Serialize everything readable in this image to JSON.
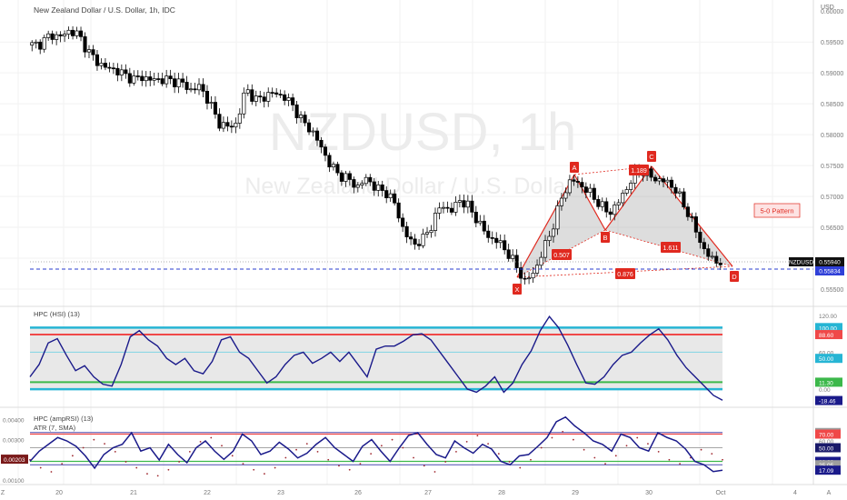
{
  "header": {
    "title": "New Zealand Dollar / U.S. Dollar, 1h, IDC"
  },
  "watermark": {
    "symbol": "NZDUSD, 1h",
    "name": "New Zealand Dollar / U.S. Dollar"
  },
  "pattern": {
    "label": "5-0 Pattern",
    "points": [
      "X",
      "A",
      "B",
      "C",
      "D"
    ],
    "ratios": [
      "0.507",
      "1.189",
      "1.611",
      "0.876"
    ]
  },
  "price_axis": {
    "currency": "USD",
    "ticks": [
      "0.60000",
      "0.59500",
      "0.59000",
      "0.58500",
      "0.58000",
      "0.57500",
      "0.57000",
      "0.56500",
      "0.55500"
    ],
    "symbol_tag": "NZDUSD",
    "last_price": "0.55940",
    "line_price": "0.55834"
  },
  "time_axis": {
    "ticks": [
      "Z",
      "20",
      "21",
      "22",
      "23",
      "26",
      "27",
      "28",
      "29",
      "30",
      "Oct",
      "4",
      "A"
    ]
  },
  "hsi": {
    "title": "HPC (HSI) (13)",
    "levels": [
      "120.00",
      "100.00",
      "88.60",
      "60.00",
      "50.00",
      "11.30",
      "0.00",
      "-18.46"
    ]
  },
  "amprsi": {
    "title": "HPC (ampRSI) (13)",
    "atr_title": "ATR (7, SMA)",
    "left_ticks": [
      "0.00400",
      "0.00300",
      "0.00200",
      "0.00100"
    ],
    "left_tag": "0.00203",
    "levels": [
      "72.33",
      "70.00",
      "60.00",
      "50.00",
      "30.00",
      "25.05",
      "17.09"
    ]
  },
  "colors": {
    "up": "#ffffff",
    "down": "#000000",
    "pattern_red": "#e0291f",
    "hsi_line": "#1a1a8a",
    "cyan": "#26b5d4",
    "red": "#f04848",
    "green": "#3cb84a",
    "blue_dash": "#2a3ecf"
  },
  "chart_data": [
    {
      "type": "candlestick",
      "title": "New Zealand Dollar / U.S. Dollar, 1h, IDC",
      "ylabel": "USD",
      "ylim": [
        0.5525,
        0.6018
      ],
      "x_ticks": [
        "20",
        "21",
        "22",
        "23",
        "26",
        "27",
        "28",
        "29",
        "30",
        "Oct",
        "4"
      ],
      "close_path": [
        0.5945,
        0.5948,
        0.5962,
        0.5958,
        0.5968,
        0.5962,
        0.5935,
        0.5918,
        0.5908,
        0.5905,
        0.5896,
        0.589,
        0.5893,
        0.5888,
        0.589,
        0.5887,
        0.5885,
        0.5872,
        0.5878,
        0.5855,
        0.582,
        0.5812,
        0.5818,
        0.5876,
        0.5855,
        0.5862,
        0.5868,
        0.5862,
        0.5848,
        0.5822,
        0.5808,
        0.5782,
        0.5752,
        0.5735,
        0.5728,
        0.5715,
        0.573,
        0.5712,
        0.5708,
        0.5688,
        0.5642,
        0.5622,
        0.563,
        0.5655,
        0.5688,
        0.5675,
        0.5695,
        0.5682,
        0.5658,
        0.5635,
        0.5628,
        0.5612,
        0.5588,
        0.5562,
        0.5578,
        0.5615,
        0.5652,
        0.5702,
        0.5728,
        0.5718,
        0.5705,
        0.5688,
        0.5672,
        0.569,
        0.5715,
        0.5745,
        0.5738,
        0.5728,
        0.5725,
        0.5715,
        0.5688,
        0.5658,
        0.562,
        0.5598,
        0.5594
      ],
      "series": [
        {
          "name": "5-0 Pattern",
          "points": [
            [
              "X",
              0.5554
            ],
            [
              "A",
              0.5735
            ],
            [
              "B",
              0.5665
            ],
            [
              "C",
              0.5755
            ],
            [
              "D",
              0.558
            ]
          ]
        }
      ],
      "annotations": [
        "0.507",
        "1.189",
        "1.611",
        "0.876",
        "5-0 Pattern"
      ],
      "last_price": 0.5594,
      "horizontal_line": 0.55834
    },
    {
      "type": "line",
      "title": "HPC (HSI) (13)",
      "ylim": [
        -25,
        130
      ],
      "levels": [
        100,
        88.6,
        60,
        11.3,
        0
      ],
      "values": [
        20,
        40,
        75,
        82,
        55,
        30,
        38,
        20,
        8,
        5,
        40,
        85,
        95,
        80,
        70,
        50,
        40,
        50,
        30,
        25,
        45,
        80,
        85,
        60,
        50,
        30,
        10,
        20,
        40,
        55,
        60,
        42,
        50,
        60,
        45,
        60,
        40,
        20,
        65,
        70,
        70,
        78,
        88,
        90,
        80,
        60,
        40,
        20,
        0,
        -5,
        5,
        20,
        -5,
        10,
        40,
        62,
        95,
        118,
        100,
        72,
        40,
        10,
        8,
        20,
        40,
        55,
        60,
        75,
        88,
        98,
        80,
        55,
        35,
        20,
        5,
        -10,
        -18
      ]
    },
    {
      "type": "line",
      "title": "HPC (ampRSI) (13)",
      "ylim": [
        0,
        100
      ],
      "levels": [
        70,
        50,
        30
      ],
      "values": [
        30,
        45,
        55,
        65,
        60,
        52,
        38,
        20,
        40,
        50,
        55,
        72,
        45,
        50,
        32,
        55,
        40,
        28,
        50,
        60,
        45,
        33,
        45,
        70,
        60,
        40,
        45,
        58,
        48,
        35,
        42,
        55,
        65,
        50,
        40,
        30,
        52,
        62,
        45,
        30,
        50,
        68,
        72,
        55,
        40,
        35,
        60,
        50,
        42,
        55,
        48,
        30,
        25,
        38,
        40,
        52,
        65,
        88,
        95,
        82,
        72,
        60,
        55,
        45,
        70,
        65,
        50,
        45,
        72,
        65,
        60,
        48,
        30,
        25,
        15,
        17
      ]
    },
    {
      "type": "scatter",
      "title": "ATR (7, SMA)",
      "ylim": [
        0.0009,
        0.0043
      ],
      "values": [
        0.002,
        0.0016,
        0.0014,
        0.0018,
        0.0022,
        0.0026,
        0.003,
        0.0028,
        0.0024,
        0.0019,
        0.0016,
        0.0013,
        0.0012,
        0.0015,
        0.0019,
        0.0024,
        0.0029,
        0.0031,
        0.0027,
        0.0022,
        0.0018,
        0.0015,
        0.0013,
        0.0016,
        0.0021,
        0.0025,
        0.0028,
        0.0024,
        0.002,
        0.0017,
        0.0015,
        0.0018,
        0.0023,
        0.0027,
        0.003,
        0.0026,
        0.0021,
        0.0017,
        0.0014,
        0.0019,
        0.0024,
        0.0029,
        0.0032,
        0.0028,
        0.0023,
        0.0019,
        0.0016,
        0.002,
        0.0026,
        0.0031,
        0.0034,
        0.003,
        0.0025,
        0.0021,
        0.0018,
        0.0022,
        0.0027,
        0.0031,
        0.0028,
        0.0024,
        0.002,
        0.0018,
        0.0021,
        0.0025,
        0.0023,
        0.002
      ]
    }
  ]
}
